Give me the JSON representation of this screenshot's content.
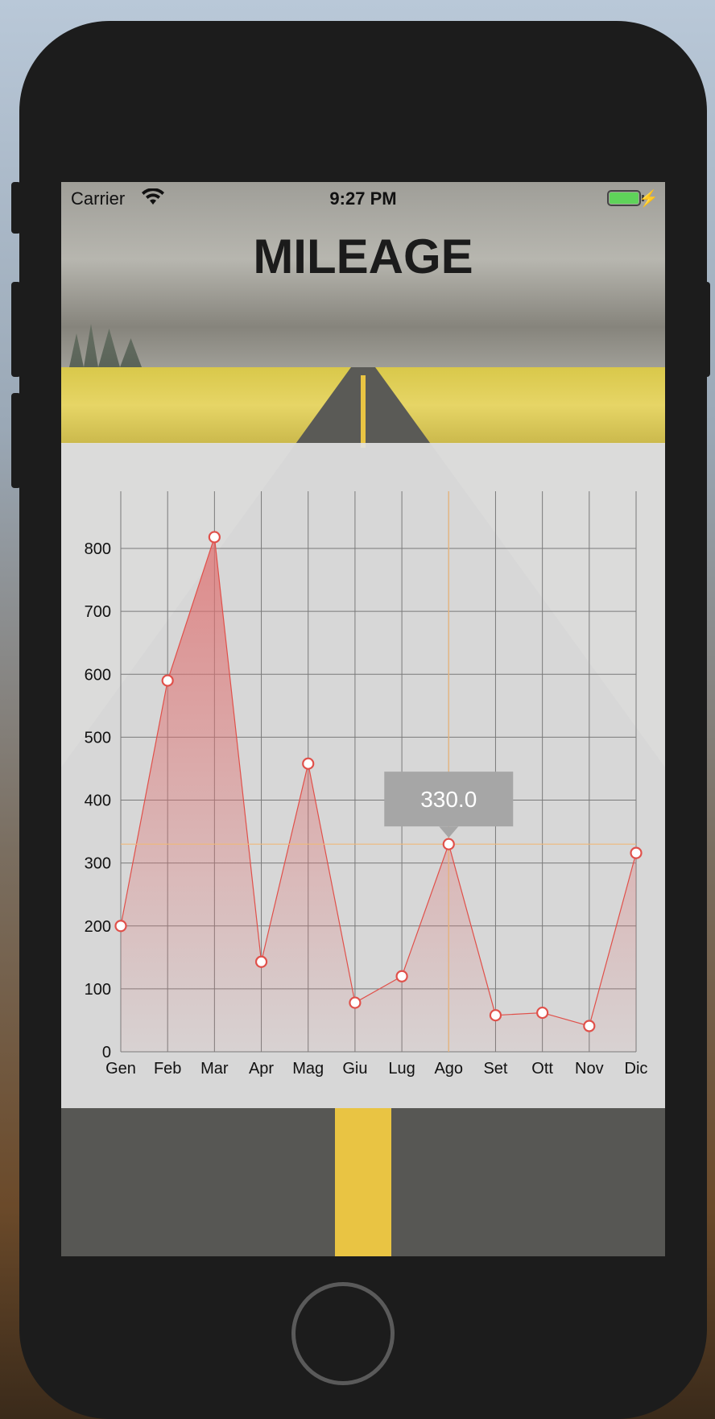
{
  "status_bar": {
    "carrier": "Carrier",
    "time": "9:27 PM"
  },
  "title": "MILEAGE",
  "tooltip": {
    "text": "330.0",
    "index": 7
  },
  "colors": {
    "line": "#e0504a",
    "fill": "#e07070",
    "highlight": "#f0b87a",
    "tooltip_bg": "#a6a6a6"
  },
  "chart_data": {
    "type": "area",
    "categories": [
      "Gen",
      "Feb",
      "Mar",
      "Apr",
      "Mag",
      "Giu",
      "Lug",
      "Ago",
      "Set",
      "Ott",
      "Nov",
      "Dic"
    ],
    "values": [
      200,
      590,
      818,
      143,
      458,
      78,
      120,
      330,
      58,
      62,
      41,
      316
    ],
    "yticks": [
      0,
      100,
      200,
      300,
      400,
      500,
      600,
      700,
      800
    ],
    "ylim": [
      0,
      900
    ],
    "title": "",
    "xlabel": "",
    "ylabel": "",
    "grid": true,
    "legend": "none"
  }
}
